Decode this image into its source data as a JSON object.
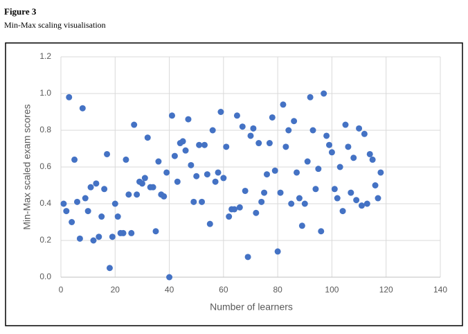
{
  "figure": {
    "label": "Figure 3",
    "caption": "Min-Max scaling visualisation"
  },
  "chart_data": {
    "type": "scatter",
    "x_label": "Number of learners",
    "y_label": "Min-Max scaled exam  scores",
    "color": "#4472c4",
    "grid": true,
    "xlim": [
      0,
      140
    ],
    "xticks": [
      0,
      20,
      40,
      60,
      80,
      100,
      120,
      140
    ],
    "ylim": [
      0,
      1.2
    ],
    "yticks": [
      {
        "value": 0,
        "label": "0.0"
      },
      0.2,
      0.4,
      0.6,
      0.8,
      {
        "value": 1,
        "label": "1.0"
      },
      1.2
    ],
    "x": [
      1,
      2,
      3,
      4,
      5,
      6,
      7,
      8,
      9,
      10,
      11,
      12,
      13,
      14,
      15,
      16,
      17,
      18,
      19,
      20,
      21,
      22,
      23,
      24,
      25,
      26,
      27,
      28,
      29,
      30,
      31,
      32,
      33,
      34,
      35,
      36,
      37,
      38,
      39,
      40,
      41,
      42,
      43,
      44,
      45,
      46,
      47,
      48,
      49,
      50,
      51,
      52,
      53,
      54,
      55,
      56,
      57,
      58,
      59,
      60,
      61,
      62,
      63,
      64,
      65,
      66,
      67,
      68,
      69,
      70,
      71,
      72,
      73,
      74,
      75,
      76,
      77,
      78,
      79,
      80,
      81,
      82,
      83,
      84,
      85,
      86,
      87,
      88,
      89,
      90,
      91,
      92,
      93,
      94,
      95,
      96,
      97,
      98,
      99,
      100,
      101,
      102,
      103,
      104,
      105,
      106,
      107,
      108,
      109,
      110,
      111,
      112,
      113,
      114,
      115,
      116,
      117,
      118
    ],
    "values": [
      0.4,
      0.36,
      0.98,
      0.3,
      0.64,
      0.41,
      0.21,
      0.92,
      0.43,
      0.36,
      0.49,
      0.2,
      0.51,
      0.22,
      0.33,
      0.48,
      0.67,
      0.05,
      0.22,
      0.4,
      0.33,
      0.24,
      0.24,
      0.64,
      0.45,
      0.24,
      0.83,
      0.45,
      0.52,
      0.51,
      0.54,
      0.76,
      0.49,
      0.49,
      0.25,
      0.63,
      0.45,
      0.44,
      0.57,
      0.0,
      0.88,
      0.66,
      0.52,
      0.73,
      0.74,
      0.69,
      0.86,
      0.61,
      0.41,
      0.55,
      0.72,
      0.41,
      0.72,
      0.56,
      0.29,
      0.8,
      0.52,
      0.57,
      0.9,
      0.54,
      0.71,
      0.33,
      0.37,
      0.37,
      0.88,
      0.38,
      0.82,
      0.47,
      0.11,
      0.77,
      0.81,
      0.35,
      0.73,
      0.41,
      0.46,
      0.56,
      0.73,
      0.87,
      0.58,
      0.14,
      0.46,
      0.94,
      0.71,
      0.8,
      0.4,
      0.85,
      0.57,
      0.43,
      0.28,
      0.4,
      0.63,
      0.98,
      0.8,
      0.48,
      0.59,
      0.25,
      1.0,
      0.77,
      0.72,
      0.68,
      0.48,
      0.43,
      0.6,
      0.36,
      0.83,
      0.71,
      0.46,
      0.65,
      0.42,
      0.81,
      0.39,
      0.78,
      0.4,
      0.67,
      0.64,
      0.5,
      0.43,
      0.57
    ]
  }
}
